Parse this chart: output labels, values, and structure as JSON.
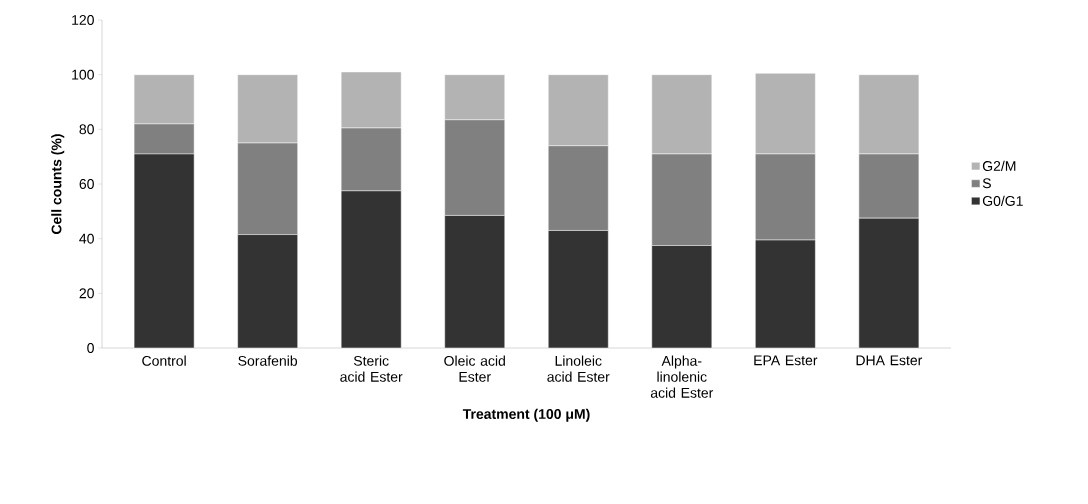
{
  "chart_data": {
    "type": "bar",
    "stacked": true,
    "xlabel": "Treatment (100 μM)",
    "ylabel": "Cell counts (%)",
    "categories": [
      "Control",
      "Sorafenib",
      "Steric acid Ester",
      "Oleic acid Ester",
      "Linoleic acid Ester",
      "Alpha-linolenic acid Ester",
      "EPA Ester",
      "DHA Ester"
    ],
    "series": [
      {
        "name": "G0/G1",
        "color": "#333333",
        "values": [
          71,
          41.5,
          57.5,
          48.5,
          43,
          37.5,
          39.5,
          47.5
        ]
      },
      {
        "name": "S",
        "color": "#808080",
        "values": [
          11,
          33.5,
          23,
          35,
          31,
          33.5,
          31.5,
          23.5
        ]
      },
      {
        "name": "G2/M",
        "color": "#b3b3b3",
        "values": [
          18,
          25,
          20.5,
          16.5,
          26,
          29,
          29.5,
          29
        ]
      }
    ],
    "ylim": [
      0,
      120
    ],
    "yticks": [
      0,
      20,
      40,
      60,
      80,
      100,
      120
    ],
    "legend": "right",
    "grid": false
  }
}
